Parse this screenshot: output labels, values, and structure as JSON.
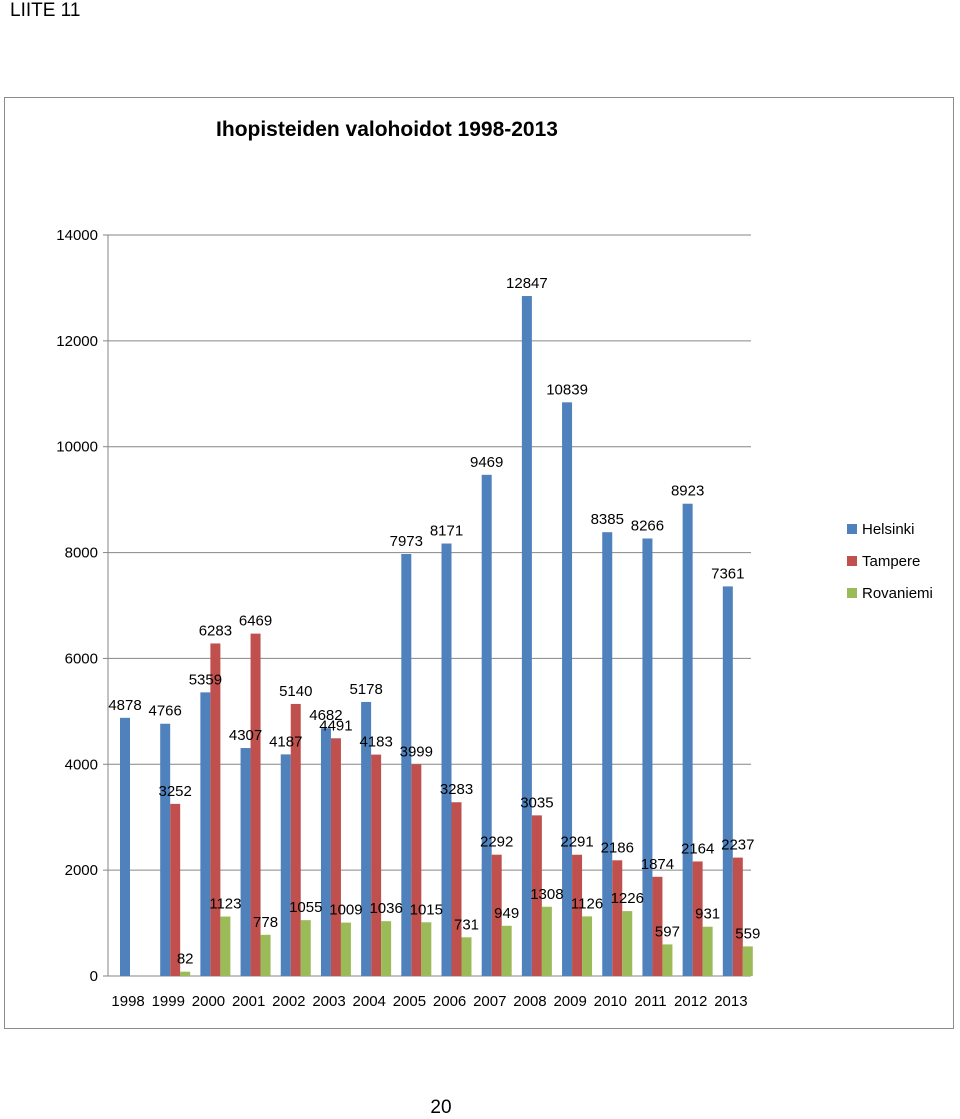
{
  "page": {
    "header": "LIITE 11",
    "page_number": "20"
  },
  "chart_data": {
    "type": "bar",
    "title": "Ihopisteiden valohoidot 1998-2013",
    "xlabel": "",
    "ylabel": "",
    "ylim": [
      0,
      14000
    ],
    "yticks": [
      0,
      2000,
      4000,
      6000,
      8000,
      10000,
      12000,
      14000
    ],
    "grid": true,
    "legend_position": "right",
    "categories": [
      "1998",
      "1999",
      "2000",
      "2001",
      "2002",
      "2003",
      "2004",
      "2005",
      "2006",
      "2007",
      "2008",
      "2009",
      "2010",
      "2011",
      "2012",
      "2013"
    ],
    "series": [
      {
        "name": "Helsinki",
        "color": "#4f81bd",
        "values": [
          4878,
          4766,
          5359,
          4307,
          4187,
          4682,
          5178,
          7973,
          8171,
          9469,
          12847,
          10839,
          8385,
          8266,
          8923,
          7361
        ]
      },
      {
        "name": "Tampere",
        "color": "#c0504d",
        "values": [
          null,
          3252,
          6283,
          6469,
          5140,
          4491,
          4183,
          3999,
          3283,
          2292,
          3035,
          2291,
          2186,
          1874,
          2164,
          2237
        ]
      },
      {
        "name": "Rovaniemi",
        "color": "#9bbb59",
        "values": [
          null,
          82,
          1123,
          778,
          1055,
          1009,
          1036,
          1015,
          731,
          949,
          1308,
          1126,
          1226,
          597,
          931,
          559
        ]
      }
    ]
  }
}
